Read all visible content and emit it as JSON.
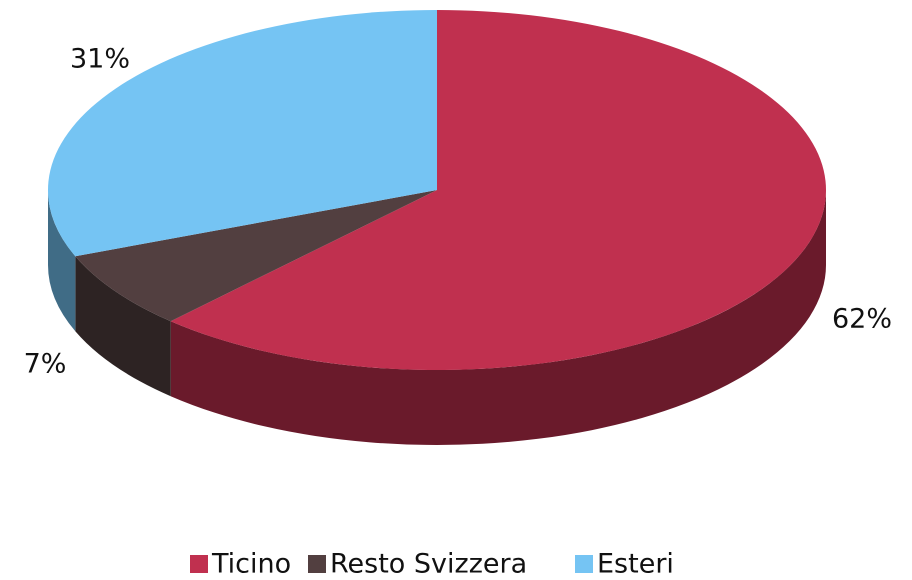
{
  "chart_data": {
    "type": "pie",
    "categories": [
      "Ticino",
      "Resto Svizzera",
      "Esteri"
    ],
    "values": [
      62,
      7,
      31
    ],
    "value_labels": [
      "62%",
      "7%",
      "31%"
    ],
    "colors": [
      "#c0304f",
      "#523f40",
      "#75c4f3"
    ],
    "legend": "bottom"
  }
}
